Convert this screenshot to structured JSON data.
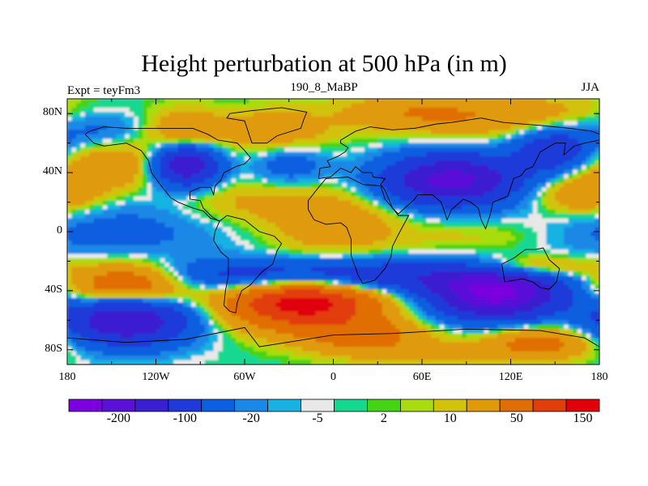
{
  "chart_data": {
    "type": "heatmap",
    "title": "Height perturbation at 500 hPa (in m)",
    "subtitle_left": "Expt = teyFm3",
    "subtitle_center": "190_8_MaBP",
    "subtitle_right": "JJA",
    "xlim": [
      -180,
      180
    ],
    "ylim": [
      -90,
      90
    ],
    "x_ticks": [
      {
        "value": -180,
        "label": "180"
      },
      {
        "value": -120,
        "label": "120W"
      },
      {
        "value": -60,
        "label": "60W"
      },
      {
        "value": 0,
        "label": "0"
      },
      {
        "value": 60,
        "label": "60E"
      },
      {
        "value": 120,
        "label": "120E"
      },
      {
        "value": 180,
        "label": "180"
      }
    ],
    "y_ticks": [
      {
        "value": 80,
        "label": "80N"
      },
      {
        "value": 40,
        "label": "40N"
      },
      {
        "value": 0,
        "label": "0"
      },
      {
        "value": -40,
        "label": "40S"
      },
      {
        "value": -80,
        "label": "80S"
      }
    ],
    "colorbar": {
      "colors": [
        "#7a00e0",
        "#5a10d8",
        "#3a1fd0",
        "#1f3ad8",
        "#0b5fe0",
        "#1a88e6",
        "#18b2e2",
        "#e8e8e8",
        "#14d890",
        "#44d414",
        "#a8dc10",
        "#d2c20c",
        "#e09a08",
        "#e06e06",
        "#e23e0a",
        "#e00008"
      ],
      "tick_labels": [
        {
          "after_box": 2,
          "label": "-200"
        },
        {
          "after_box": 4,
          "label": "-100"
        },
        {
          "after_box": 6,
          "label": "-20"
        },
        {
          "after_box": 8,
          "label": "-5"
        },
        {
          "after_box": 10,
          "label": "2"
        },
        {
          "after_box": 12,
          "label": "10"
        },
        {
          "after_box": 14,
          "label": "50"
        },
        {
          "after_box": 16,
          "label": "150"
        }
      ]
    },
    "fields": [
      {
        "lon": -150,
        "lat": 15,
        "value": -18,
        "sx": 55,
        "sy": 14
      },
      {
        "lon": -150,
        "lat": -5,
        "value": -22,
        "sx": 50,
        "sy": 12
      },
      {
        "lon": -150,
        "lat": 45,
        "value": 45,
        "sx": 40,
        "sy": 12
      },
      {
        "lon": -100,
        "lat": 45,
        "value": -160,
        "sx": 16,
        "sy": 10
      },
      {
        "lon": -100,
        "lat": 68,
        "value": 45,
        "sx": 18,
        "sy": 10
      },
      {
        "lon": -40,
        "lat": 68,
        "value": 40,
        "sx": 25,
        "sy": 10
      },
      {
        "lon": -160,
        "lat": 70,
        "value": -35,
        "sx": 25,
        "sy": 10
      },
      {
        "lon": -30,
        "lat": 45,
        "value": -35,
        "sx": 18,
        "sy": 10
      },
      {
        "lon": -60,
        "lat": 20,
        "value": 25,
        "sx": 40,
        "sy": 10
      },
      {
        "lon": 0,
        "lat": 5,
        "value": 40,
        "sx": 30,
        "sy": 15
      },
      {
        "lon": 80,
        "lat": 35,
        "value": -170,
        "sx": 32,
        "sy": 12
      },
      {
        "lon": 110,
        "lat": 78,
        "value": 45,
        "sx": 60,
        "sy": 10
      },
      {
        "lon": 50,
        "lat": 82,
        "value": 25,
        "sx": 30,
        "sy": 8
      },
      {
        "lon": 150,
        "lat": 55,
        "value": -90,
        "sx": 20,
        "sy": 12
      },
      {
        "lon": 170,
        "lat": 25,
        "value": 55,
        "sx": 25,
        "sy": 10
      },
      {
        "lon": 100,
        "lat": -5,
        "value": 15,
        "sx": 40,
        "sy": 10
      },
      {
        "lon": -140,
        "lat": -35,
        "value": 120,
        "sx": 30,
        "sy": 10
      },
      {
        "lon": -20,
        "lat": -48,
        "value": 180,
        "sx": 35,
        "sy": 12
      },
      {
        "lon": -140,
        "lat": -60,
        "value": -150,
        "sx": 30,
        "sy": 12
      },
      {
        "lon": -5,
        "lat": -30,
        "value": -100,
        "sx": 90,
        "sy": 8
      },
      {
        "lon": 110,
        "lat": -42,
        "value": -210,
        "sx": 30,
        "sy": 12
      },
      {
        "lon": 140,
        "lat": -75,
        "value": 70,
        "sx": 25,
        "sy": 8
      },
      {
        "lon": 60,
        "lat": -82,
        "value": 25,
        "sx": 40,
        "sy": 6
      },
      {
        "lon": 130,
        "lat": -25,
        "value": 80,
        "sx": 30,
        "sy": 6
      },
      {
        "lon": 20,
        "lat": -70,
        "value": 60,
        "sx": 30,
        "sy": 8
      }
    ],
    "coastlines": [
      [
        [
          -168,
          66
        ],
        [
          -162,
          60
        ],
        [
          -155,
          58
        ],
        [
          -140,
          60
        ],
        [
          -130,
          55
        ],
        [
          -125,
          48
        ],
        [
          -123,
          40
        ],
        [
          -118,
          33
        ],
        [
          -110,
          23
        ],
        [
          -105,
          20
        ],
        [
          -95,
          16
        ],
        [
          -88,
          14
        ],
        [
          -83,
          9
        ],
        [
          -79,
          8
        ],
        [
          -77,
          7
        ]
      ],
      [
        [
          -77,
          7
        ],
        [
          -80,
          0
        ],
        [
          -81,
          -6
        ],
        [
          -76,
          -14
        ],
        [
          -71,
          -18
        ],
        [
          -71,
          -30
        ],
        [
          -73,
          -40
        ],
        [
          -74,
          -50
        ],
        [
          -70,
          -54
        ],
        [
          -66,
          -55
        ],
        [
          -65,
          -48
        ],
        [
          -62,
          -40
        ],
        [
          -56,
          -36
        ],
        [
          -48,
          -27
        ],
        [
          -41,
          -22
        ],
        [
          -38,
          -13
        ],
        [
          -35,
          -8
        ],
        [
          -40,
          -3
        ],
        [
          -50,
          0
        ],
        [
          -60,
          8
        ],
        [
          -72,
          11
        ],
        [
          -77,
          7
        ]
      ],
      [
        [
          -77,
          7
        ],
        [
          -82,
          10
        ],
        [
          -88,
          16
        ],
        [
          -90,
          21
        ],
        [
          -97,
          22
        ],
        [
          -97,
          27
        ],
        [
          -90,
          30
        ],
        [
          -83,
          30
        ],
        [
          -81,
          25
        ],
        [
          -80,
          31
        ],
        [
          -76,
          35
        ],
        [
          -74,
          40
        ],
        [
          -70,
          42
        ],
        [
          -66,
          44
        ],
        [
          -60,
          46
        ],
        [
          -56,
          50
        ],
        [
          -60,
          55
        ],
        [
          -65,
          60
        ],
        [
          -78,
          62
        ],
        [
          -85,
          66
        ],
        [
          -95,
          70
        ],
        [
          -110,
          70
        ],
        [
          -125,
          70
        ],
        [
          -140,
          70
        ],
        [
          -155,
          71
        ],
        [
          -165,
          68
        ],
        [
          -168,
          66
        ]
      ],
      [
        [
          -55,
          60
        ],
        [
          -45,
          60
        ],
        [
          -38,
          65
        ],
        [
          -22,
          70
        ],
        [
          -20,
          76
        ],
        [
          -18,
          81
        ],
        [
          -35,
          84
        ],
        [
          -55,
          82
        ],
        [
          -70,
          80
        ],
        [
          -72,
          77
        ],
        [
          -60,
          75
        ],
        [
          -55,
          60
        ]
      ],
      [
        [
          -10,
          36
        ],
        [
          -9,
          43
        ],
        [
          -2,
          44
        ],
        [
          -4,
          48
        ],
        [
          3,
          51
        ],
        [
          8,
          54
        ],
        [
          10,
          57
        ],
        [
          5,
          60
        ],
        [
          5,
          62
        ],
        [
          15,
          68
        ],
        [
          25,
          71
        ],
        [
          40,
          69
        ],
        [
          55,
          70
        ],
        [
          70,
          73
        ],
        [
          80,
          74
        ],
        [
          100,
          77
        ],
        [
          115,
          74
        ],
        [
          140,
          72
        ],
        [
          160,
          70
        ],
        [
          175,
          68
        ],
        [
          180,
          66
        ]
      ],
      [
        [
          180,
          62
        ],
        [
          170,
          60
        ],
        [
          163,
          58
        ],
        [
          156,
          52
        ],
        [
          157,
          60
        ],
        [
          150,
          60
        ],
        [
          140,
          54
        ],
        [
          135,
          44
        ],
        [
          130,
          42
        ],
        [
          127,
          38
        ],
        [
          122,
          36
        ],
        [
          120,
          30
        ],
        [
          118,
          24
        ],
        [
          108,
          20
        ],
        [
          106,
          11
        ],
        [
          103,
          2
        ],
        [
          100,
          8
        ],
        [
          98,
          16
        ],
        [
          93,
          20
        ],
        [
          88,
          22
        ],
        [
          80,
          15
        ],
        [
          77,
          8
        ],
        [
          73,
          20
        ],
        [
          67,
          25
        ],
        [
          57,
          25
        ],
        [
          55,
          22
        ],
        [
          44,
          12
        ],
        [
          40,
          16
        ],
        [
          35,
          28
        ],
        [
          32,
          32
        ],
        [
          35,
          36
        ],
        [
          27,
          37
        ],
        [
          26,
          40
        ],
        [
          20,
          40
        ],
        [
          15,
          44
        ],
        [
          12,
          40
        ],
        [
          5,
          43
        ],
        [
          -2,
          37
        ],
        [
          -10,
          36
        ]
      ],
      [
        [
          -17,
          15
        ],
        [
          -17,
          21
        ],
        [
          -10,
          30
        ],
        [
          -5,
          36
        ],
        [
          10,
          37
        ],
        [
          20,
          32
        ],
        [
          32,
          31
        ],
        [
          35,
          22
        ],
        [
          40,
          16
        ],
        [
          44,
          11
        ],
        [
          51,
          11
        ],
        [
          44,
          -2
        ],
        [
          40,
          -10
        ],
        [
          39,
          -17
        ],
        [
          35,
          -25
        ],
        [
          28,
          -33
        ],
        [
          20,
          -35
        ],
        [
          17,
          -30
        ],
        [
          12,
          -16
        ],
        [
          12,
          -5
        ],
        [
          9,
          3
        ],
        [
          5,
          6
        ],
        [
          -5,
          5
        ],
        [
          -13,
          8
        ],
        [
          -17,
          15
        ]
      ],
      [
        [
          114,
          -22
        ],
        [
          122,
          -18
        ],
        [
          130,
          -12
        ],
        [
          137,
          -12
        ],
        [
          142,
          -11
        ],
        [
          146,
          -19
        ],
        [
          153,
          -25
        ],
        [
          151,
          -34
        ],
        [
          146,
          -39
        ],
        [
          140,
          -38
        ],
        [
          135,
          -34
        ],
        [
          128,
          -32
        ],
        [
          116,
          -34
        ],
        [
          114,
          -22
        ]
      ],
      [
        [
          -180,
          -72
        ],
        [
          -140,
          -75
        ],
        [
          -100,
          -73
        ],
        [
          -60,
          -65
        ],
        [
          -50,
          -78
        ],
        [
          0,
          -70
        ],
        [
          40,
          -69
        ],
        [
          90,
          -66
        ],
        [
          140,
          -67
        ],
        [
          170,
          -72
        ],
        [
          180,
          -78
        ]
      ]
    ]
  }
}
